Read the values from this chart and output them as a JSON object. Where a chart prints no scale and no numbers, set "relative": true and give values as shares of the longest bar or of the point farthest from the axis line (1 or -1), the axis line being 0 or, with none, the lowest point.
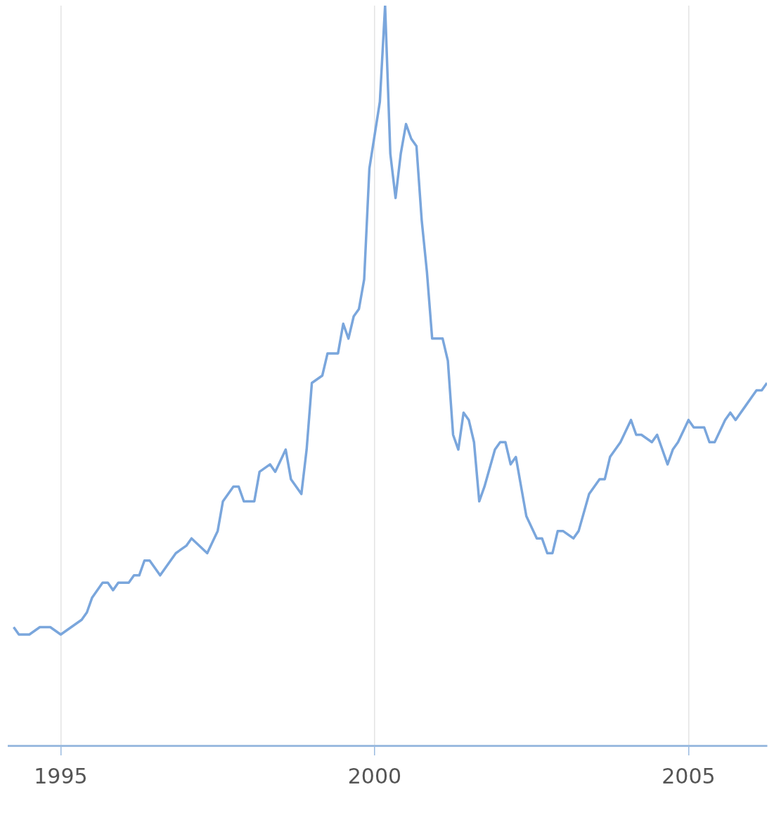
{
  "chart_data": {
    "type": "line",
    "relative": true,
    "color": "#7aa6dc",
    "grid": "x",
    "legend": false,
    "marker": "none",
    "line_style": "solid",
    "x": [
      "1994-04",
      "1994-05",
      "1994-07",
      "1994-09",
      "1994-11",
      "1995-01",
      "1995-03",
      "1995-05",
      "1995-06",
      "1995-07",
      "1995-09",
      "1995-10",
      "1995-11",
      "1995-12",
      "1996-02",
      "1996-03",
      "1996-04",
      "1996-05",
      "1996-06",
      "1996-08",
      "1996-09",
      "1996-11",
      "1997-01",
      "1997-02",
      "1997-05",
      "1997-07",
      "1997-08",
      "1997-10",
      "1997-11",
      "1997-12",
      "1998-02",
      "1998-03",
      "1998-05",
      "1998-06",
      "1998-08",
      "1998-09",
      "1998-11",
      "1998-12",
      "1999-01",
      "1999-03",
      "1999-04",
      "1999-06",
      "1999-07",
      "1999-08",
      "1999-09",
      "1999-10",
      "1999-11",
      "1999-12",
      "2000-02",
      "2000-03",
      "2000-04",
      "2000-05",
      "2000-06",
      "2000-07",
      "2000-08",
      "2000-09",
      "2000-10",
      "2000-11",
      "2000-12",
      "2001-02",
      "2001-03",
      "2001-04",
      "2001-05",
      "2001-06",
      "2001-07",
      "2001-08",
      "2001-09",
      "2001-10",
      "2001-12",
      "2002-01",
      "2002-02",
      "2002-03",
      "2002-04",
      "2002-05",
      "2002-06",
      "2002-08",
      "2002-09",
      "2002-10",
      "2002-11",
      "2002-12",
      "2003-01",
      "2003-03",
      "2003-04",
      "2003-06",
      "2003-08",
      "2003-09",
      "2003-10",
      "2003-12",
      "2004-02",
      "2004-03",
      "2004-04",
      "2004-06",
      "2004-07",
      "2004-09",
      "2004-10",
      "2004-11",
      "2005-01",
      "2005-02",
      "2005-04",
      "2005-05",
      "2005-06",
      "2005-08",
      "2005-09",
      "2005-10",
      "2005-12",
      "2006-01",
      "2006-02",
      "2006-03",
      "2006-04"
    ],
    "values": [
      0.16,
      0.15,
      0.15,
      0.16,
      0.16,
      0.15,
      0.16,
      0.17,
      0.18,
      0.2,
      0.22,
      0.22,
      0.21,
      0.22,
      0.22,
      0.23,
      0.23,
      0.25,
      0.25,
      0.23,
      0.24,
      0.26,
      0.27,
      0.28,
      0.26,
      0.29,
      0.33,
      0.35,
      0.35,
      0.33,
      0.33,
      0.37,
      0.38,
      0.37,
      0.4,
      0.36,
      0.34,
      0.4,
      0.49,
      0.5,
      0.53,
      0.53,
      0.57,
      0.55,
      0.58,
      0.59,
      0.63,
      0.78,
      0.87,
      1,
      0.8,
      0.74,
      0.8,
      0.84,
      0.82,
      0.81,
      0.71,
      0.64,
      0.55,
      0.55,
      0.52,
      0.42,
      0.4,
      0.45,
      0.44,
      0.41,
      0.33,
      0.35,
      0.4,
      0.41,
      0.41,
      0.38,
      0.39,
      0.35,
      0.31,
      0.28,
      0.28,
      0.26,
      0.26,
      0.29,
      0.29,
      0.28,
      0.29,
      0.34,
      0.36,
      0.36,
      0.39,
      0.41,
      0.44,
      0.42,
      0.42,
      0.41,
      0.42,
      0.38,
      0.4,
      0.41,
      0.44,
      0.43,
      0.43,
      0.41,
      0.41,
      0.44,
      0.45,
      0.44,
      0.46,
      0.47,
      0.48,
      0.48,
      0.49
    ],
    "xlim": [
      "1994-03",
      "2006-04"
    ],
    "xticks": [
      "1995",
      "2000",
      "2005"
    ]
  }
}
